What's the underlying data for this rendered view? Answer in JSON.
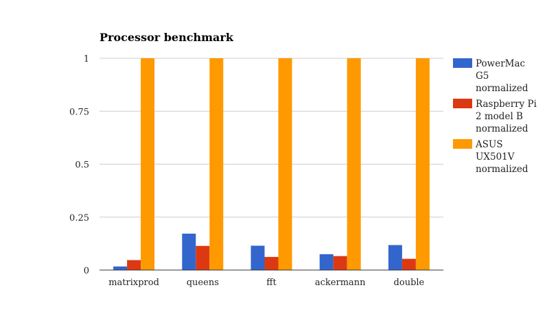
{
  "chart_data": {
    "type": "bar",
    "title": "Processor benchmark",
    "categories": [
      "matrixprod",
      "queens",
      "fft",
      "ackermann",
      "double"
    ],
    "series": [
      {
        "name": "PowerMac G5 normalized",
        "legend_lines": [
          "PowerMac",
          "G5",
          "normalized"
        ],
        "color": "#3366cc",
        "values": [
          0.017,
          0.172,
          0.115,
          0.075,
          0.118
        ]
      },
      {
        "name": "Raspberry Pi 2 model B normalized",
        "legend_lines": [
          "Raspberry Pi",
          "2 model B",
          "normalized"
        ],
        "color": "#dc3912",
        "values": [
          0.047,
          0.114,
          0.062,
          0.066,
          0.053
        ]
      },
      {
        "name": "ASUS UX501V normalized",
        "legend_lines": [
          "ASUS",
          "UX501V",
          "normalized"
        ],
        "color": "#ff9900",
        "values": [
          1,
          1,
          1,
          1,
          1
        ]
      }
    ],
    "ylim": [
      0,
      1
    ],
    "yticks": [
      0,
      0.25,
      0.5,
      0.75,
      1
    ],
    "ytick_labels": [
      "0",
      "0.25",
      "0.5",
      "0.75",
      "1"
    ],
    "xlabel": "",
    "ylabel": "",
    "grid": true,
    "legend_position": "right"
  }
}
